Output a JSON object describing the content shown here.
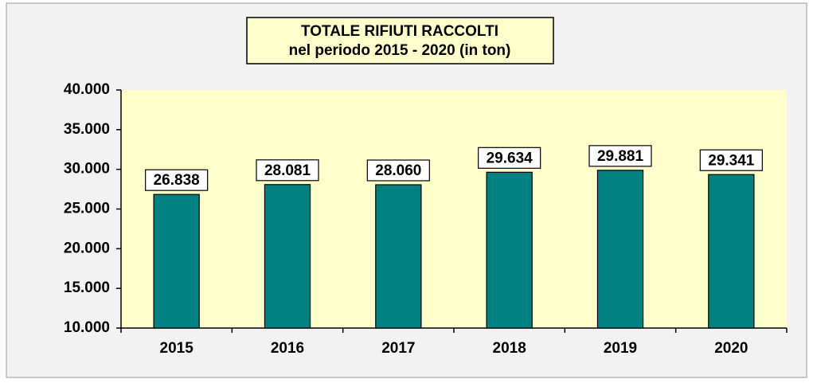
{
  "chart_data": {
    "type": "bar",
    "title": "TOTALE RIFIUTI RACCOLTI",
    "subtitle": "nel periodo 2015 - 2020 (in ton)",
    "categories": [
      "2015",
      "2016",
      "2017",
      "2018",
      "2019",
      "2020"
    ],
    "values": [
      26838,
      28081,
      28060,
      29634,
      29881,
      29341
    ],
    "value_labels": [
      "26.838",
      "28.081",
      "28.060",
      "29.634",
      "29.881",
      "29.341"
    ],
    "color": "#008080",
    "ylim": [
      10000,
      40000
    ],
    "yticks": [
      {
        "value": 10000,
        "label": "10.000"
      },
      {
        "value": 15000,
        "label": "15.000"
      },
      {
        "value": 20000,
        "label": "20.000"
      },
      {
        "value": 25000,
        "label": "25.000"
      },
      {
        "value": 30000,
        "label": "30.000"
      },
      {
        "value": 35000,
        "label": "35.000"
      },
      {
        "value": 40000,
        "label": "40.000"
      }
    ],
    "grid": false
  }
}
